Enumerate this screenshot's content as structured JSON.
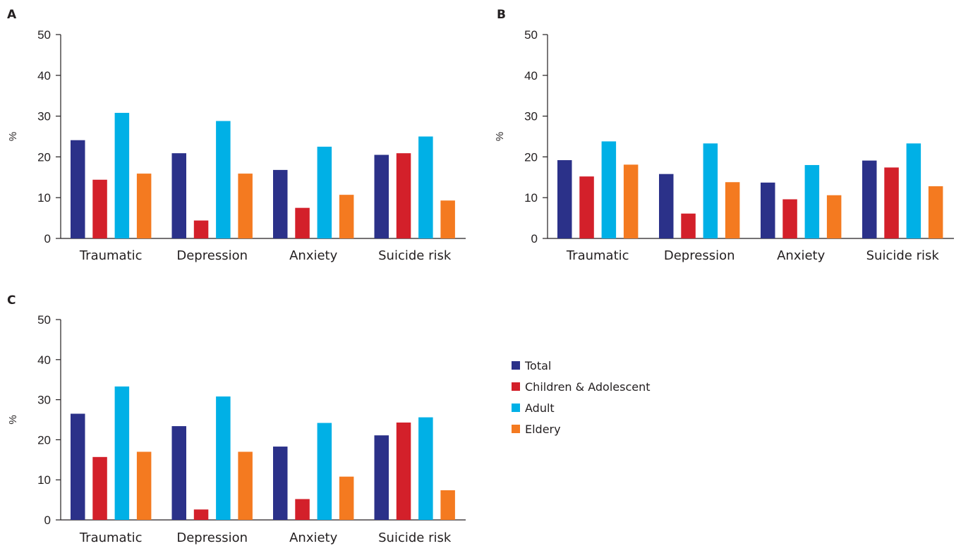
{
  "chart_data": [
    {
      "panel": "A",
      "type": "bar",
      "ylabel": "%",
      "ylim": [
        0,
        50
      ],
      "yticks": [
        0,
        10,
        20,
        30,
        40,
        50
      ],
      "categories": [
        "Traumatic",
        "Depression",
        "Anxiety",
        "Suicide risk"
      ],
      "series": [
        {
          "name": "Total",
          "values": [
            24.1,
            20.9,
            16.8,
            20.5
          ]
        },
        {
          "name": "Children & Adolescent",
          "values": [
            14.4,
            4.4,
            7.5,
            20.9
          ]
        },
        {
          "name": "Adult",
          "values": [
            30.8,
            28.8,
            22.5,
            25.0
          ]
        },
        {
          "name": "Eldery",
          "values": [
            15.9,
            15.9,
            10.7,
            9.3
          ]
        }
      ]
    },
    {
      "panel": "B",
      "type": "bar",
      "ylabel": "%",
      "ylim": [
        0,
        50
      ],
      "yticks": [
        0,
        10,
        20,
        30,
        40,
        50
      ],
      "categories": [
        "Traumatic",
        "Depression",
        "Anxiety",
        "Suicide risk"
      ],
      "series": [
        {
          "name": "Total",
          "values": [
            19.2,
            15.8,
            13.7,
            19.1
          ]
        },
        {
          "name": "Children & Adolescent",
          "values": [
            15.2,
            6.1,
            9.6,
            17.4
          ]
        },
        {
          "name": "Adult",
          "values": [
            23.8,
            23.3,
            18.0,
            23.3
          ]
        },
        {
          "name": "Eldery",
          "values": [
            18.1,
            13.8,
            10.6,
            12.8
          ]
        }
      ]
    },
    {
      "panel": "C",
      "type": "bar",
      "ylabel": "%",
      "ylim": [
        0,
        50
      ],
      "yticks": [
        0,
        10,
        20,
        30,
        40,
        50
      ],
      "categories": [
        "Traumatic",
        "Depression",
        "Anxiety",
        "Suicide risk"
      ],
      "series": [
        {
          "name": "Total",
          "values": [
            26.5,
            23.4,
            18.3,
            21.1
          ]
        },
        {
          "name": "Children & Adolescent",
          "values": [
            15.7,
            2.6,
            5.2,
            24.3
          ]
        },
        {
          "name": "Adult",
          "values": [
            33.3,
            30.8,
            24.2,
            25.6
          ]
        },
        {
          "name": "Eldery",
          "values": [
            17.0,
            17.0,
            10.8,
            7.4
          ]
        }
      ]
    }
  ],
  "legend": {
    "items": [
      {
        "label": "Total",
        "color": "#2b3189"
      },
      {
        "label": "Children & Adolescent",
        "color": "#d3202a"
      },
      {
        "label": "Adult",
        "color": "#00b0e6"
      },
      {
        "label": "Eldery",
        "color": "#f47a20"
      }
    ]
  }
}
